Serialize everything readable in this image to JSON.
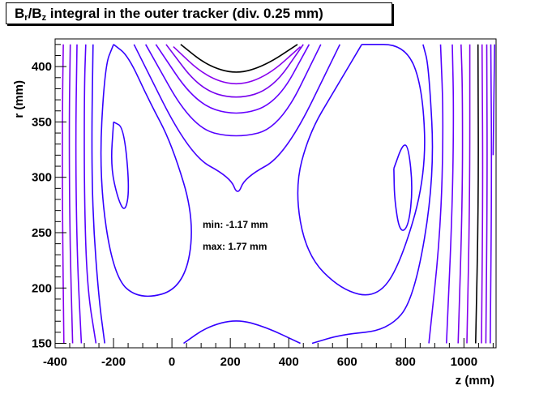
{
  "chart_data": {
    "type": "contour",
    "title": {
      "pre": "B",
      "sub1": "r",
      "mid": "/B",
      "sub2": "z",
      "post": " integral in the outer tracker (div. 0.25 mm)"
    },
    "xlabel": "z (mm)",
    "ylabel": "r (mm)",
    "xlim": [
      -400,
      1110
    ],
    "ylim": [
      146,
      425
    ],
    "xticks": [
      -400,
      -200,
      0,
      200,
      400,
      600,
      800,
      1000
    ],
    "yticks": [
      150,
      200,
      250,
      300,
      350,
      400
    ],
    "annotations": [
      "min: -1.17 mm",
      "max: 1.77 mm"
    ],
    "grid": false,
    "colors": {
      "contour_black": "#000000",
      "contour_blue": "#3300ff",
      "contour_purple": "#8800ee",
      "contour_violet": "#6600ff"
    },
    "contours": [
      {
        "color": "#000000",
        "points": [
          [
            30,
            420
          ],
          [
            120,
            401
          ],
          [
            220,
            393
          ],
          [
            320,
            401
          ],
          [
            430,
            420
          ]
        ]
      },
      {
        "color": "#8800ee",
        "points": [
          [
            5,
            418
          ],
          [
            110,
            392
          ],
          [
            220,
            382
          ],
          [
            330,
            392
          ],
          [
            440,
            418
          ]
        ]
      },
      {
        "color": "#7700ee",
        "points": [
          [
            -20,
            420
          ],
          [
            95,
            380
          ],
          [
            220,
            370
          ],
          [
            345,
            380
          ],
          [
            450,
            420
          ]
        ]
      },
      {
        "color": "#6600ff",
        "points": [
          [
            -55,
            420
          ],
          [
            80,
            367
          ],
          [
            220,
            355
          ],
          [
            360,
            367
          ],
          [
            470,
            420
          ]
        ]
      },
      {
        "color": "#5500ff",
        "points": [
          [
            -90,
            420
          ],
          [
            70,
            345
          ],
          [
            220,
            335
          ],
          [
            370,
            345
          ],
          [
            510,
            420
          ]
        ]
      },
      {
        "color": "#4400ff",
        "points": [
          [
            -130,
            420
          ],
          [
            60,
            320
          ],
          [
            200,
            300
          ],
          [
            225,
            283
          ],
          [
            250,
            300
          ],
          [
            390,
            320
          ],
          [
            575,
            420
          ]
        ]
      },
      {
        "color": "#3300ff",
        "points": [
          [
            -200,
            420
          ],
          [
            -150,
            410
          ],
          [
            -80,
            370
          ],
          [
            0,
            330
          ],
          [
            80,
            260
          ],
          [
            40,
            200
          ],
          [
            -110,
            189
          ],
          [
            -200,
            210
          ],
          [
            -250,
            300
          ],
          [
            -230,
            400
          ],
          [
            -200,
            420
          ]
        ]
      },
      {
        "color": "#3300ff",
        "points": [
          [
            -200,
            350
          ],
          [
            -165,
            345
          ],
          [
            -145,
            290
          ],
          [
            -160,
            268
          ],
          [
            -185,
            280
          ],
          [
            -210,
            310
          ],
          [
            -200,
            350
          ]
        ]
      },
      {
        "color": "#3300ff",
        "points": [
          [
            650,
            420
          ],
          [
            560,
            380
          ],
          [
            470,
            340
          ],
          [
            420,
            290
          ],
          [
            460,
            230
          ],
          [
            580,
            198
          ],
          [
            700,
            191
          ],
          [
            780,
            220
          ],
          [
            870,
            300
          ],
          [
            860,
            380
          ],
          [
            800,
            420
          ],
          [
            650,
            420
          ]
        ]
      },
      {
        "color": "#3300ff",
        "points": [
          [
            760,
            308
          ],
          [
            790,
            330
          ],
          [
            810,
            328
          ],
          [
            825,
            290
          ],
          [
            810,
            255
          ],
          [
            780,
            250
          ],
          [
            762,
            280
          ],
          [
            760,
            308
          ]
        ]
      },
      {
        "color": "#3300ff",
        "points": [
          [
            40,
            150
          ],
          [
            120,
            165
          ],
          [
            220,
            172
          ],
          [
            320,
            165
          ],
          [
            440,
            150
          ]
        ]
      },
      {
        "color": "#3300ff",
        "points": [
          [
            -230,
            150
          ],
          [
            -250,
            190
          ],
          [
            -270,
            260
          ],
          [
            -275,
            330
          ],
          [
            -270,
            420
          ]
        ]
      },
      {
        "color": "#5500ff",
        "points": [
          [
            -260,
            150
          ],
          [
            -290,
            200
          ],
          [
            -300,
            280
          ],
          [
            -300,
            380
          ],
          [
            -295,
            420
          ]
        ]
      },
      {
        "color": "#6600ff",
        "points": [
          [
            -310,
            150
          ],
          [
            -325,
            230
          ],
          [
            -330,
            330
          ],
          [
            -325,
            420
          ]
        ]
      },
      {
        "color": "#7700ee",
        "points": [
          [
            -340,
            150
          ],
          [
            -350,
            250
          ],
          [
            -352,
            350
          ],
          [
            -348,
            420
          ]
        ]
      },
      {
        "color": "#8800ee",
        "points": [
          [
            -370,
            150
          ],
          [
            -375,
            270
          ],
          [
            -375,
            360
          ],
          [
            -372,
            420
          ]
        ]
      },
      {
        "color": "#3300ff",
        "points": [
          [
            480,
            150
          ],
          [
            580,
            158
          ],
          [
            740,
            162
          ],
          [
            830,
            190
          ],
          [
            900,
            300
          ],
          [
            880,
            400
          ],
          [
            860,
            420
          ]
        ]
      },
      {
        "color": "#5500ff",
        "points": [
          [
            880,
            150
          ],
          [
            920,
            250
          ],
          [
            930,
            350
          ],
          [
            920,
            420
          ]
        ]
      },
      {
        "color": "#6600ff",
        "points": [
          [
            940,
            150
          ],
          [
            960,
            270
          ],
          [
            965,
            360
          ],
          [
            960,
            420
          ]
        ]
      },
      {
        "color": "#7700ee",
        "points": [
          [
            980,
            150
          ],
          [
            995,
            280
          ],
          [
            995,
            380
          ],
          [
            990,
            420
          ]
        ]
      },
      {
        "color": "#8800ee",
        "points": [
          [
            1010,
            150
          ],
          [
            1020,
            280
          ],
          [
            1020,
            420
          ]
        ]
      },
      {
        "color": "#000000",
        "points": [
          [
            1040,
            150
          ],
          [
            1050,
            280
          ],
          [
            1048,
            420
          ]
        ]
      },
      {
        "color": "#8800ee",
        "points": [
          [
            1060,
            150
          ],
          [
            1065,
            300
          ],
          [
            1062,
            420
          ]
        ]
      },
      {
        "color": "#7700ee",
        "points": [
          [
            1075,
            150
          ],
          [
            1080,
            300
          ],
          [
            1078,
            420
          ]
        ]
      },
      {
        "color": "#6600ff",
        "points": [
          [
            1090,
            150
          ],
          [
            1095,
            300
          ],
          [
            1092,
            420
          ]
        ]
      },
      {
        "color": "#5500ff",
        "points": [
          [
            1100,
            320
          ],
          [
            1105,
            420
          ]
        ]
      }
    ]
  }
}
